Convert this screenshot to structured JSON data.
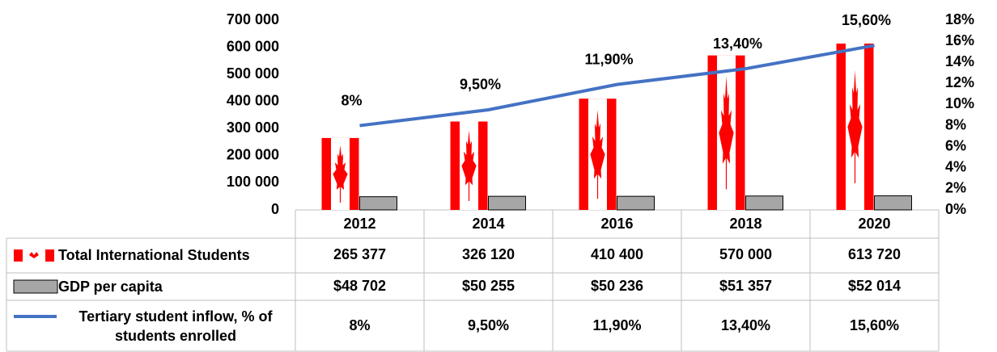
{
  "chart_data": {
    "type": "bar",
    "categories": [
      "2012",
      "2014",
      "2016",
      "2018",
      "2020"
    ],
    "series": [
      {
        "name": "Total International Students",
        "color": "#ff0000",
        "values": [
          265377,
          326120,
          410400,
          570000,
          613720
        ],
        "value_labels": [
          "265 377",
          "326 120",
          "410 400",
          "570 000",
          "613 720"
        ]
      },
      {
        "name": "GDP per capita",
        "color": "#a6a6a6",
        "values": [
          48702,
          50255,
          50236,
          51357,
          52014
        ],
        "value_labels": [
          "$48 702",
          "$50 255",
          "$50 236",
          "$51 357",
          "$52 014"
        ]
      },
      {
        "name": "Tertiary student inflow, % of students enrolled",
        "type": "line",
        "axis": "y2",
        "color": "#4472c4",
        "values": [
          8,
          9.5,
          11.9,
          13.4,
          15.6
        ],
        "value_labels": [
          "8%",
          "9,50%",
          "11,90%",
          "13,40%",
          "15,60%"
        ]
      }
    ],
    "ylim": [
      0,
      700000
    ],
    "yticks": [
      0,
      {
        "value": 100000,
        "label": "100 000"
      },
      {
        "value": 200000,
        "label": "200 000"
      },
      {
        "value": 300000,
        "label": "300 000"
      },
      {
        "value": 400000,
        "label": "400 000"
      },
      {
        "value": 500000,
        "label": "500 000"
      },
      {
        "value": 600000,
        "label": "600 000"
      },
      {
        "value": 700000,
        "label": "700 000"
      }
    ],
    "y2lim": [
      0,
      18
    ],
    "y2ticks": [
      {
        "value": 0,
        "label": "0%"
      },
      {
        "value": 2,
        "label": "2%"
      },
      {
        "value": 4,
        "label": "4%"
      },
      {
        "value": 6,
        "label": "6%"
      },
      {
        "value": 8,
        "label": "8%"
      },
      {
        "value": 10,
        "label": "10%"
      },
      {
        "value": 12,
        "label": "12%"
      },
      {
        "value": 14,
        "label": "14%"
      },
      {
        "value": 16,
        "label": "16%"
      },
      {
        "value": 18,
        "label": "18%"
      }
    ],
    "grid": false
  }
}
